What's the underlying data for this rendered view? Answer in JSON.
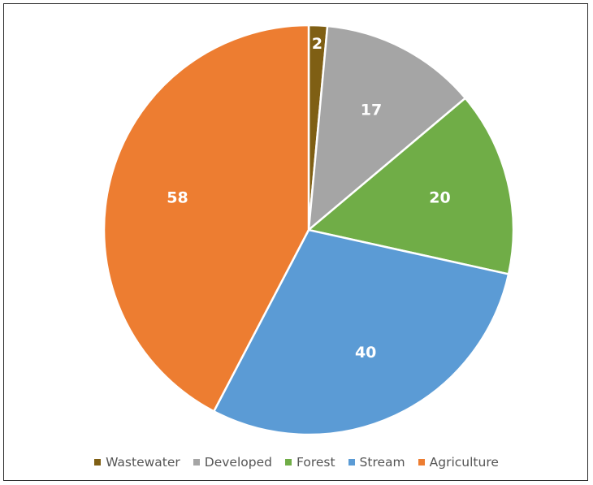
{
  "chart_data": {
    "type": "pie",
    "title": "",
    "categories": [
      "Wastewater",
      "Developed",
      "Forest",
      "Stream",
      "Agriculture"
    ],
    "values": [
      2,
      17,
      20,
      40,
      58
    ],
    "data_labels": [
      "2",
      "17",
      "20",
      "40",
      "58"
    ],
    "colors": [
      "#7f5f14",
      "#a5a5a5",
      "#70ad47",
      "#5b9bd5",
      "#ed7d31"
    ],
    "start_angle": "12 o'clock",
    "direction": "clockwise",
    "legend_placement": "bottom"
  }
}
